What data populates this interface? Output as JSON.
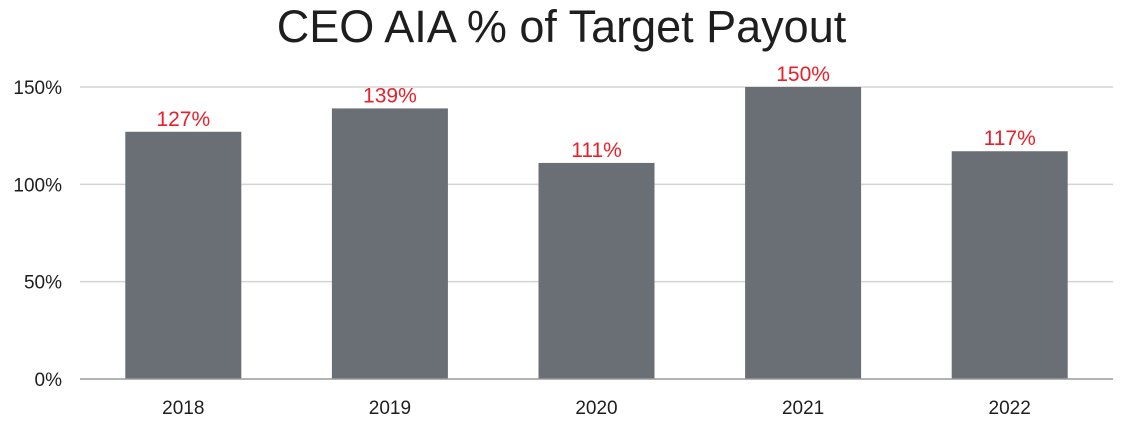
{
  "chart_data": {
    "type": "bar",
    "title": "CEO AIA % of Target Payout",
    "categories": [
      "2018",
      "2019",
      "2020",
      "2021",
      "2022"
    ],
    "values": [
      127,
      139,
      111,
      150,
      117
    ],
    "data_labels": [
      "127%",
      "139%",
      "111%",
      "150%",
      "117%"
    ],
    "y_ticks": [
      0,
      50,
      100,
      150
    ],
    "y_tick_labels": [
      "0%",
      "50%",
      "100%",
      "150%"
    ],
    "ylim": [
      0,
      150
    ],
    "xlabel": "",
    "ylabel": "",
    "grid": true,
    "legend": "none",
    "colors": {
      "bar": "#6a6e75",
      "data_label": "#e8202a",
      "grid": "#d4d4d4",
      "axis": "#9a9a9a",
      "text": "#1e1e1e"
    }
  }
}
